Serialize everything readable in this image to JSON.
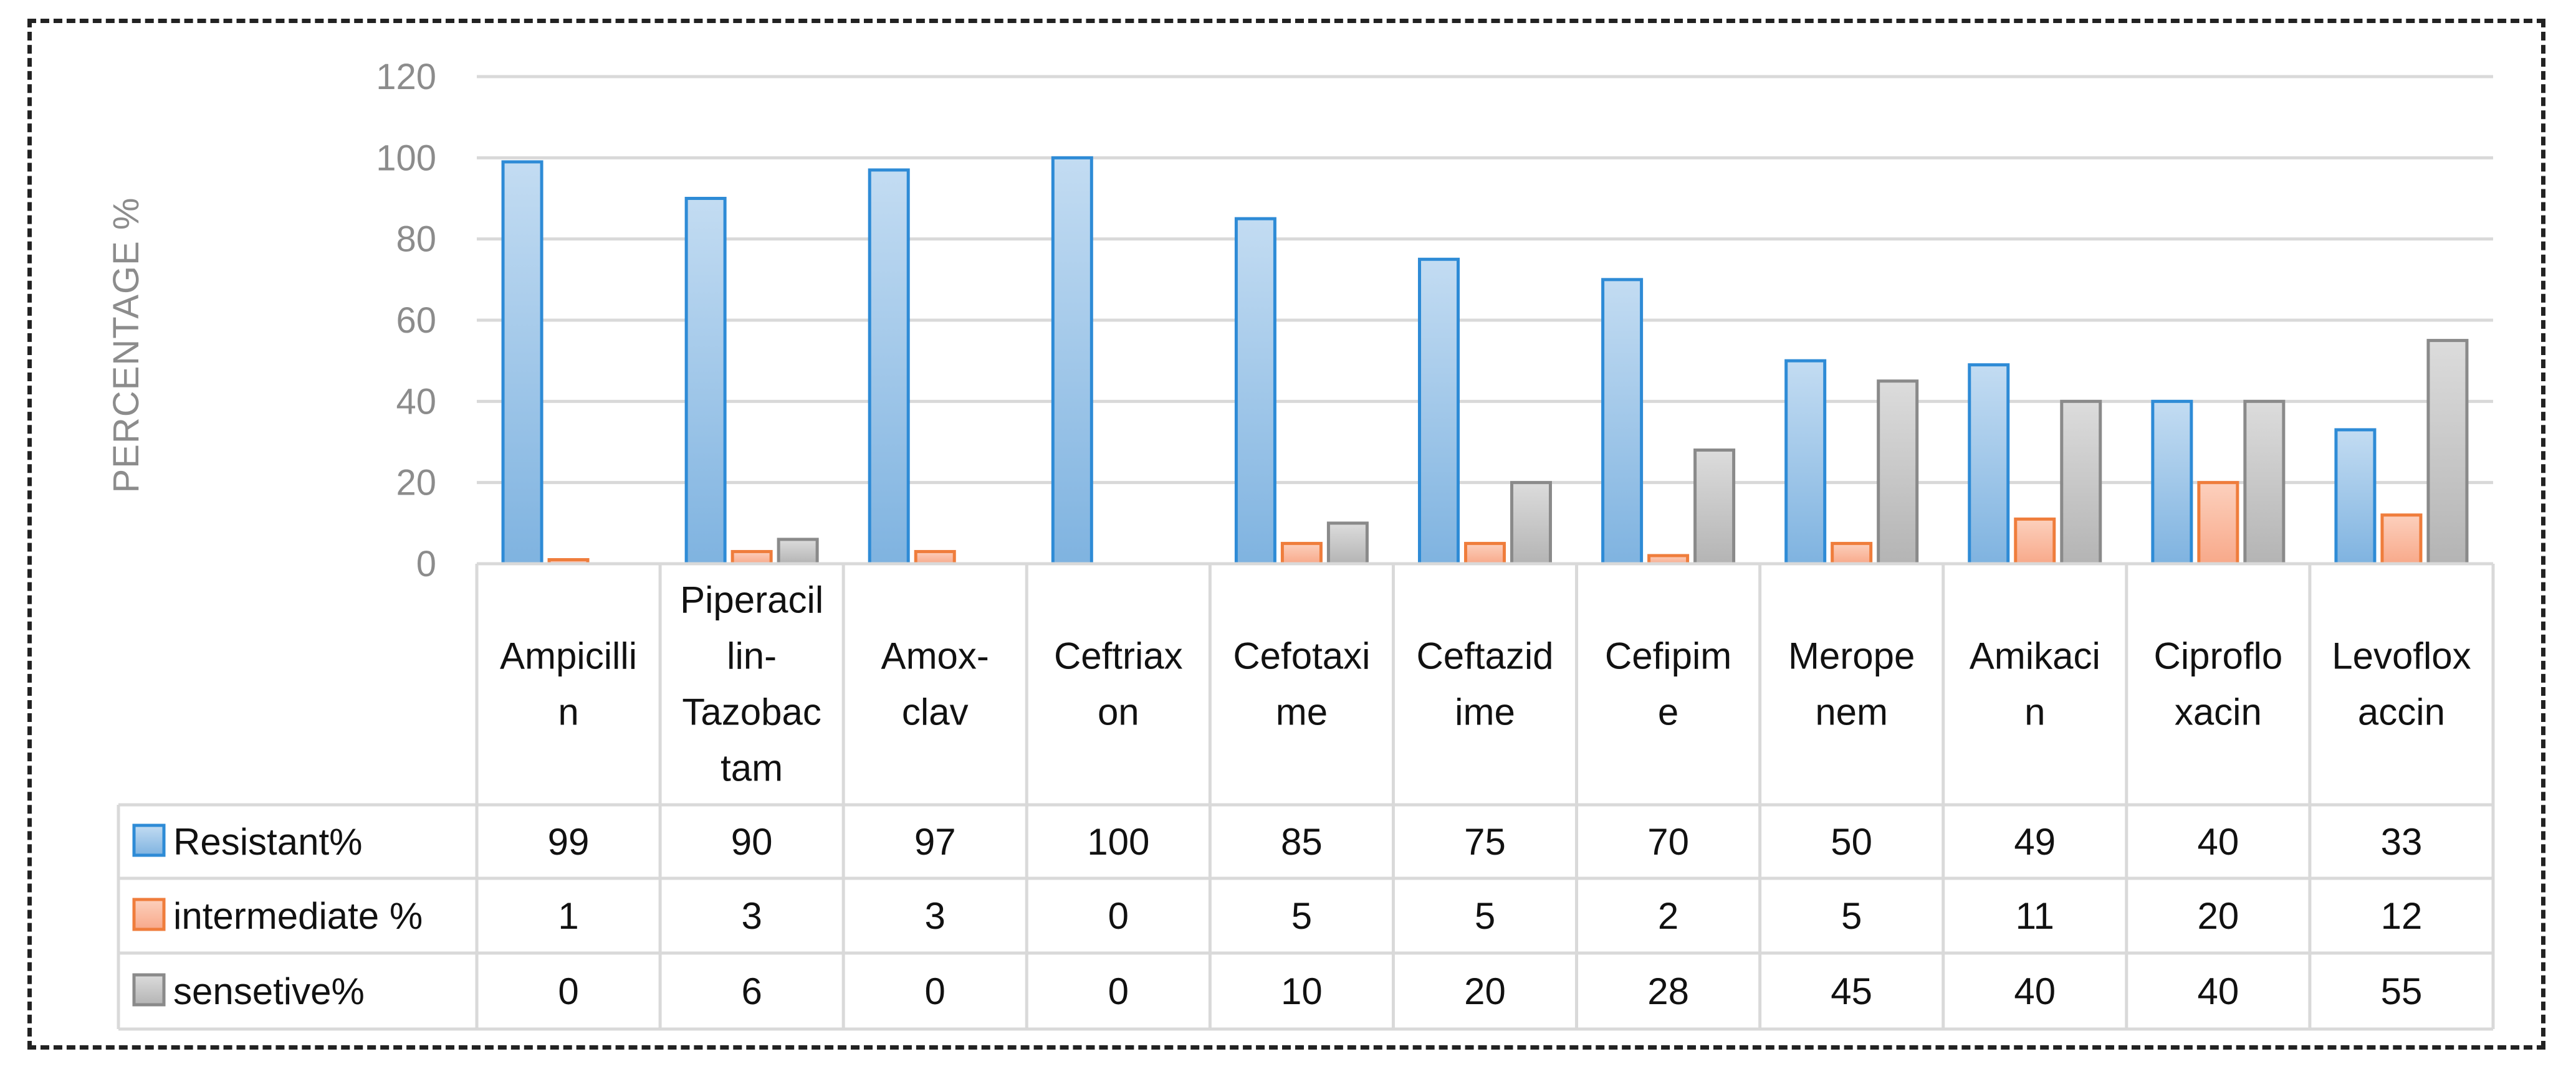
{
  "chart_data": {
    "type": "bar",
    "ylabel": "PERCENTAGE %",
    "ylim": [
      0,
      120
    ],
    "yticks": [
      0,
      20,
      40,
      60,
      80,
      100,
      120
    ],
    "grid": true,
    "legend": "data-table",
    "categories": [
      [
        "Ampicilli",
        "n"
      ],
      [
        "Piperacil",
        "lin-",
        "Tazobac",
        "tam"
      ],
      [
        "Amox-",
        "clav"
      ],
      [
        "Ceftriax",
        "on"
      ],
      [
        "Cefotaxi",
        "me"
      ],
      [
        "Ceftazid",
        "ime"
      ],
      [
        "Cefipim",
        "e"
      ],
      [
        "Merope",
        "nem"
      ],
      [
        "Amikaci",
        "n"
      ],
      [
        "Ciproflo",
        "xacin"
      ],
      [
        "Levoflox",
        "accin"
      ]
    ],
    "series": [
      {
        "name": "Resistant%",
        "values": [
          99,
          90,
          97,
          100,
          85,
          75,
          70,
          50,
          49,
          40,
          33
        ]
      },
      {
        "name": "intermediate %",
        "values": [
          1,
          3,
          3,
          0,
          5,
          5,
          2,
          5,
          11,
          20,
          12
        ]
      },
      {
        "name": "sensetive%",
        "values": [
          0,
          6,
          0,
          0,
          10,
          20,
          28,
          45,
          40,
          40,
          55
        ]
      }
    ],
    "colors": {
      "series_fill": [
        "#7fb3e0",
        "#f8a98a",
        "#b4b4b4"
      ],
      "series_fill_light": [
        "#c3dcf2",
        "#fcd0bd",
        "#dcdcdc"
      ],
      "series_stroke": [
        "#2e8bd6",
        "#ef7d3c",
        "#8a8a8a"
      ],
      "grid": "#d9d9d9",
      "table_border": "#d9d9d9"
    }
  }
}
